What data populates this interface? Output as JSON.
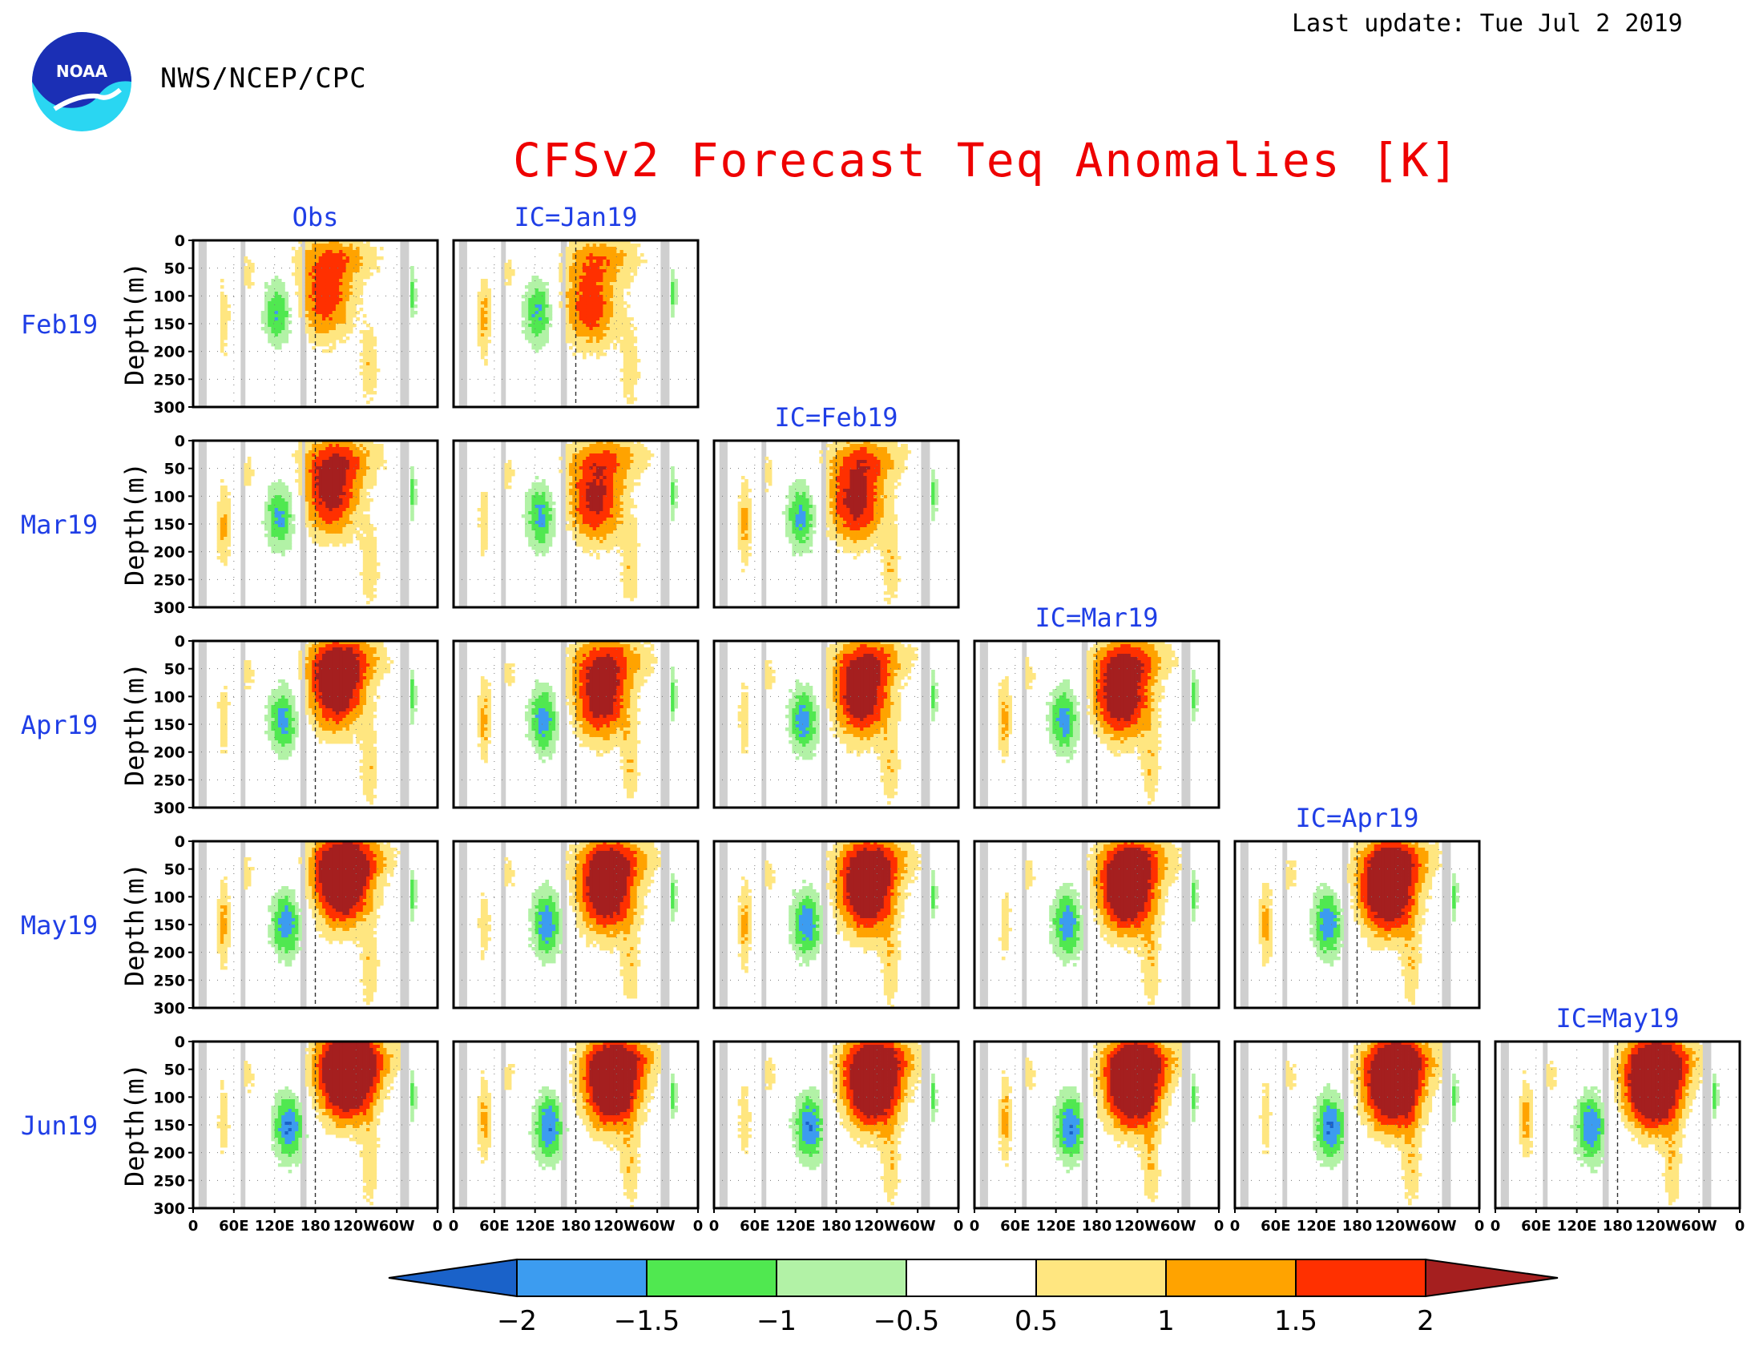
{
  "header": {
    "logo_text": "NOAA",
    "org": "NWS/NCEP/CPC",
    "last_update": "Last update: Tue Jul  2 2019"
  },
  "chart_data": {
    "type": "heatmap",
    "title": "CFSv2 Forecast Teq Anomalies [K]",
    "column_labels": [
      "Obs",
      "IC=Jan19",
      "IC=Feb19",
      "IC=Mar19",
      "IC=Apr19",
      "IC=May19"
    ],
    "row_labels": [
      "Feb19",
      "Mar19",
      "Apr19",
      "May19",
      "Jun19"
    ],
    "xlabel": "",
    "ylabel": "Depth(m)",
    "x_ticks": [
      "0",
      "60E",
      "120E",
      "180",
      "120W",
      "60W",
      "0"
    ],
    "x_range": [
      0,
      360
    ],
    "y_ticks": [
      "0",
      "50",
      "100",
      "150",
      "200",
      "250",
      "300"
    ],
    "y_range": [
      0,
      300
    ],
    "colorbar": {
      "levels": [
        "-2",
        "-1.5",
        "-1",
        "-0.5",
        "0.5",
        "1",
        "1.5",
        "2"
      ],
      "colors": [
        "#1a62c9",
        "#3c9cf0",
        "#50e850",
        "#b2f2a6",
        "#ffffff",
        "#ffe680",
        "#ffa300",
        "#ff3000",
        "#a51f1f"
      ]
    },
    "colors": {
      "land": "#cfcfcf",
      "frame": "#000000",
      "label": "#1f3ee6",
      "title": "#ee0000"
    },
    "panels_note": "lower-triangular grid: panel (row r, column c) shown when c <= r+1"
  }
}
